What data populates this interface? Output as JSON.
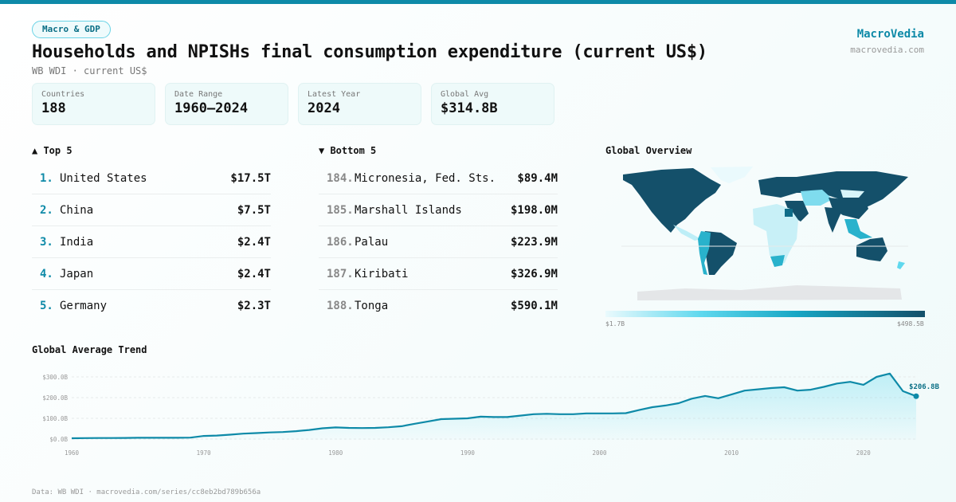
{
  "header": {
    "badge": "Macro & GDP",
    "title": "Households and NPISHs final consumption expenditure (current US$)",
    "subtitle": "WB WDI · current US$",
    "brand_name": "MacroVedia",
    "brand_url": "macrovedia.com"
  },
  "stats": [
    {
      "label": "Countries",
      "value": "188"
    },
    {
      "label": "Date Range",
      "value": "1960–2024"
    },
    {
      "label": "Latest Year",
      "value": "2024"
    },
    {
      "label": "Global Avg",
      "value": "$314.8B"
    }
  ],
  "top5": {
    "title": "▲ Top 5",
    "items": [
      {
        "rank": "1.",
        "name": "United States",
        "value": "$17.5T"
      },
      {
        "rank": "2.",
        "name": "China",
        "value": "$7.5T"
      },
      {
        "rank": "3.",
        "name": "India",
        "value": "$2.4T"
      },
      {
        "rank": "4.",
        "name": "Japan",
        "value": "$2.4T"
      },
      {
        "rank": "5.",
        "name": "Germany",
        "value": "$2.3T"
      }
    ]
  },
  "bottom5": {
    "title": "▼ Bottom 5",
    "items": [
      {
        "rank": "184.",
        "name": "Micronesia, Fed. Sts.",
        "value": "$89.4M"
      },
      {
        "rank": "185.",
        "name": "Marshall Islands",
        "value": "$198.0M"
      },
      {
        "rank": "186.",
        "name": "Palau",
        "value": "$223.9M"
      },
      {
        "rank": "187.",
        "name": "Kiribati",
        "value": "$326.9M"
      },
      {
        "rank": "188.",
        "name": "Tonga",
        "value": "$590.1M"
      }
    ]
  },
  "map": {
    "title": "Global Overview",
    "legend_min": "$1.7B",
    "legend_max": "$498.5B",
    "colors": {
      "low": "#eafafd",
      "mid": "#17a6c4",
      "high": "#14506a",
      "nodata": "#e4e6e8"
    }
  },
  "chart_data": {
    "type": "area",
    "title": "Global Average Trend",
    "xlabel": "",
    "ylabel": "",
    "x": [
      1960,
      1961,
      1962,
      1963,
      1964,
      1965,
      1966,
      1967,
      1968,
      1969,
      1970,
      1971,
      1972,
      1973,
      1974,
      1975,
      1976,
      1977,
      1978,
      1979,
      1980,
      1981,
      1982,
      1983,
      1984,
      1985,
      1986,
      1987,
      1988,
      1989,
      1990,
      1991,
      1992,
      1993,
      1994,
      1995,
      1996,
      1997,
      1998,
      1999,
      2000,
      2001,
      2002,
      2003,
      2004,
      2005,
      2006,
      2007,
      2008,
      2009,
      2010,
      2011,
      2012,
      2013,
      2014,
      2015,
      2016,
      2017,
      2018,
      2019,
      2020,
      2021,
      2022,
      2023,
      2024
    ],
    "values": [
      4,
      4.5,
      5,
      5,
      5.5,
      6,
      6,
      6,
      6,
      7,
      15,
      17,
      21,
      26,
      29,
      32,
      34,
      38,
      44,
      52,
      56,
      54,
      53,
      54,
      57,
      62,
      74,
      85,
      96,
      98,
      100,
      108,
      106,
      106,
      113,
      120,
      122,
      120,
      120,
      124,
      124,
      124,
      125,
      140,
      154,
      162,
      173,
      195,
      208,
      197,
      215,
      234,
      240,
      246,
      250,
      234,
      238,
      252,
      268,
      276,
      262,
      300,
      316,
      231,
      206.8
    ],
    "unit": "B US$",
    "ylim": [
      0,
      300
    ],
    "yticks": [
      "$0.0B",
      "$100.0B",
      "$200.0B",
      "$300.0B"
    ],
    "xticks": [
      "1960",
      "1970",
      "1980",
      "1990",
      "2000",
      "2010",
      "2020"
    ],
    "last_label": "$206.8B",
    "color": "#0e8aa8",
    "grid": true
  },
  "footer": "Data: WB WDI · macrovedia.com/series/cc8eb2bd789b656a"
}
